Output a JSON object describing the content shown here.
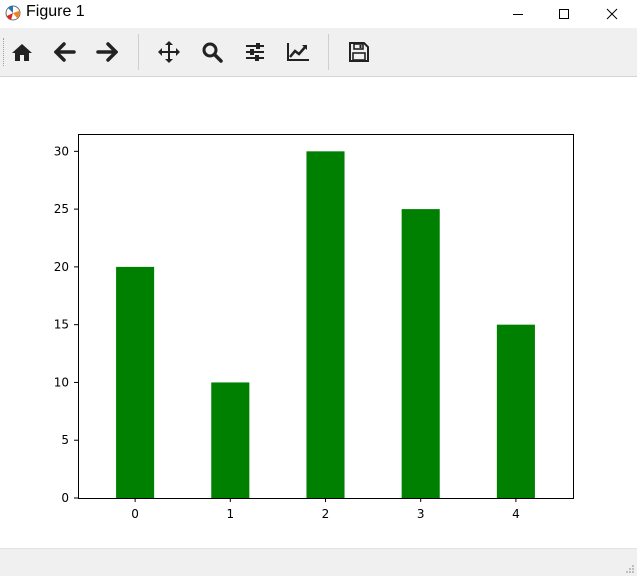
{
  "window": {
    "title": "Figure 1"
  },
  "toolbar": {
    "items": [
      {
        "name": "home",
        "icon": "home-icon"
      },
      {
        "name": "back",
        "icon": "arrow-left-icon"
      },
      {
        "name": "forward",
        "icon": "arrow-right-icon"
      },
      {
        "name": "pan",
        "icon": "move-icon"
      },
      {
        "name": "zoom",
        "icon": "search-icon"
      },
      {
        "name": "configure-subplots",
        "icon": "sliders-icon"
      },
      {
        "name": "edit-axis",
        "icon": "line-chart-icon"
      },
      {
        "name": "save",
        "icon": "floppy-disk-icon"
      }
    ]
  },
  "chart_data": {
    "type": "bar",
    "categories": [
      "0",
      "1",
      "2",
      "3",
      "4"
    ],
    "values": [
      20,
      10,
      30,
      25,
      15
    ],
    "color": "#008000",
    "title": "",
    "xlabel": "",
    "ylabel": "",
    "ylim": [
      0,
      31.5
    ],
    "yticks": [
      0,
      5,
      10,
      15,
      20,
      25,
      30
    ],
    "grid": false
  }
}
